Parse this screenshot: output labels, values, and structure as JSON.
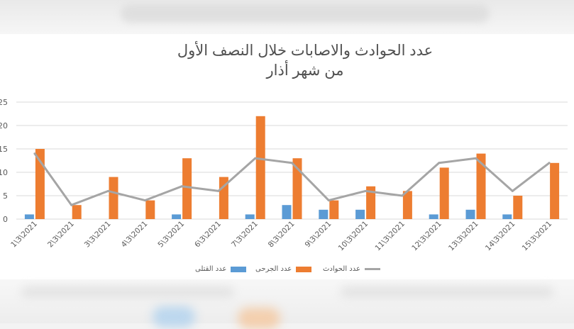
{
  "chart_data": {
    "type": "bar",
    "title_line1": "عدد الحوادث والاصابات خلال النصف الأول",
    "title_line2": "من شهر أذار",
    "categories": [
      "1\\3\\2021",
      "2\\3\\2021",
      "3\\3\\2021",
      "4\\3\\2021",
      "5\\3\\2021",
      "6\\3\\2021",
      "7\\3\\2021",
      "8\\3\\2021",
      "9\\3\\2021",
      "10\\3\\2021",
      "11\\3\\2021",
      "12\\3\\2021",
      "13\\3\\2021",
      "14\\3\\2021",
      "15\\3\\2021"
    ],
    "series": [
      {
        "name": "عدد القتلى",
        "kind": "bar",
        "color": "#5b9bd5",
        "values": [
          1,
          0,
          0,
          0,
          1,
          0,
          1,
          3,
          2,
          2,
          0,
          1,
          2,
          1,
          0
        ]
      },
      {
        "name": "عدد الجرحى",
        "kind": "bar",
        "color": "#ed7d31",
        "values": [
          15,
          3,
          9,
          4,
          13,
          9,
          22,
          13,
          4,
          7,
          6,
          11,
          14,
          5,
          12
        ]
      },
      {
        "name": "عدد الحوادث",
        "kind": "line",
        "color": "#a5a5a5",
        "values": [
          14,
          3,
          6,
          4,
          7,
          6,
          13,
          12,
          4,
          6,
          5,
          12,
          13,
          6,
          12
        ]
      }
    ],
    "y_ticks": [
      0,
      5,
      10,
      15,
      20,
      25
    ],
    "y_tick_labels": [
      "0",
      "5",
      "10",
      "15",
      "20",
      "25"
    ],
    "ylim": [
      0,
      25
    ],
    "grid": true,
    "legend_position": "bottom"
  }
}
